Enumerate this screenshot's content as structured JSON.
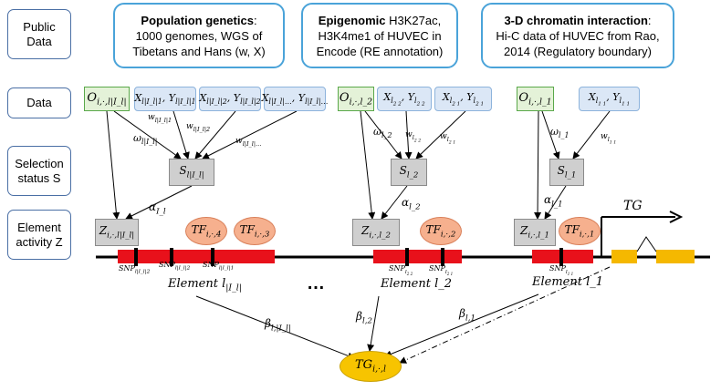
{
  "row_labels": {
    "public_data": "Public\nData",
    "data": "Data",
    "selection": "Selection\nstatus S",
    "activity": "Element\nactivity Z"
  },
  "public": [
    {
      "title": "Population genetics",
      "sep": ":",
      "text": "1000 genomes, WGS of Tibetans and Hans (w, X)"
    },
    {
      "title": "Epigenomic",
      "sep": ":",
      "text": " H3K27ac, H3K4me1 of HUVEC in Encode (RE annotation)"
    },
    {
      "title": "3-D chromatin interaction",
      "sep": ":",
      "text": "Hi-C data of HUVEC from Rao, 2014 (Regulatory boundary)"
    }
  ],
  "obs": [
    "O_{i,·,l|I_l|}",
    "O_{i,·,l_2}",
    "O_{i,·,l_1}"
  ],
  "xy": [
    "X_{l|I_l|1}, Y_{l|I_l|1}",
    "X_{l|I_l|2}, Y_{l|I_l|2}",
    "X_{l|I_l|…}, Y_{l|I_l|…}",
    "X_{l_{2 2}}, Y_{l_{2 2}}",
    "X_{l_{2 1}}, Y_{l_{2 1}}",
    "X_{l_{1 1}}, Y_{l_{1 1}}"
  ],
  "selection": [
    "S_{l|I_l|}",
    "S_{l_2}",
    "S_{l_1}"
  ],
  "activity": [
    "Z_{i,·,l|I_l|}",
    "Z_{i,·,l_2}",
    "Z_{i,·,l_1}"
  ],
  "tfs": [
    "TF_{i,·,4}",
    "TF_{i,·,3}",
    "TF_{i,·,2}",
    "TF_{i,·,1}"
  ],
  "omegas": [
    "ω_{l|I_l|}",
    "ω_{l_2}",
    "ω_{l_1}"
  ],
  "weights": [
    "w_{l|I_l|1}",
    "w_{l|I_l|2}",
    "w_{l|I_l|…}",
    "w_{l_{2 2}}",
    "w_{l_{2 1}}",
    "w_{l_{1 1}}"
  ],
  "alphas": [
    "α_{I_l}",
    "α_{l_2}",
    "α_{l_1}"
  ],
  "snps": [
    "SNP_{l|I_l|2}",
    "SNP_{l|I_l|2}",
    "SNP_{l|I_l|1}",
    "SNP_{l_{2 2}}",
    "SNP_{l_{2 1}}",
    "SNP_{l_{1 1}}"
  ],
  "elements": [
    "Element l_{|I_l|}",
    "Element l_2",
    "Element l_1"
  ],
  "ellipsis": "…",
  "tg_label": "TG",
  "betas": [
    "β_{l,|I_l|}",
    "β_{l,2}",
    "β_{l,1}"
  ],
  "target": "TG_{i,·,l}",
  "colors": {
    "element": "#e8111b",
    "exon": "#f5b800",
    "public_border": "#4aa3d9",
    "obs_fill": "#e4f2d8",
    "xy_fill": "#dbe7f6",
    "sel_fill": "#cfcfcf",
    "tf_fill": "#f6b08e",
    "target_fill": "#f7c400"
  }
}
